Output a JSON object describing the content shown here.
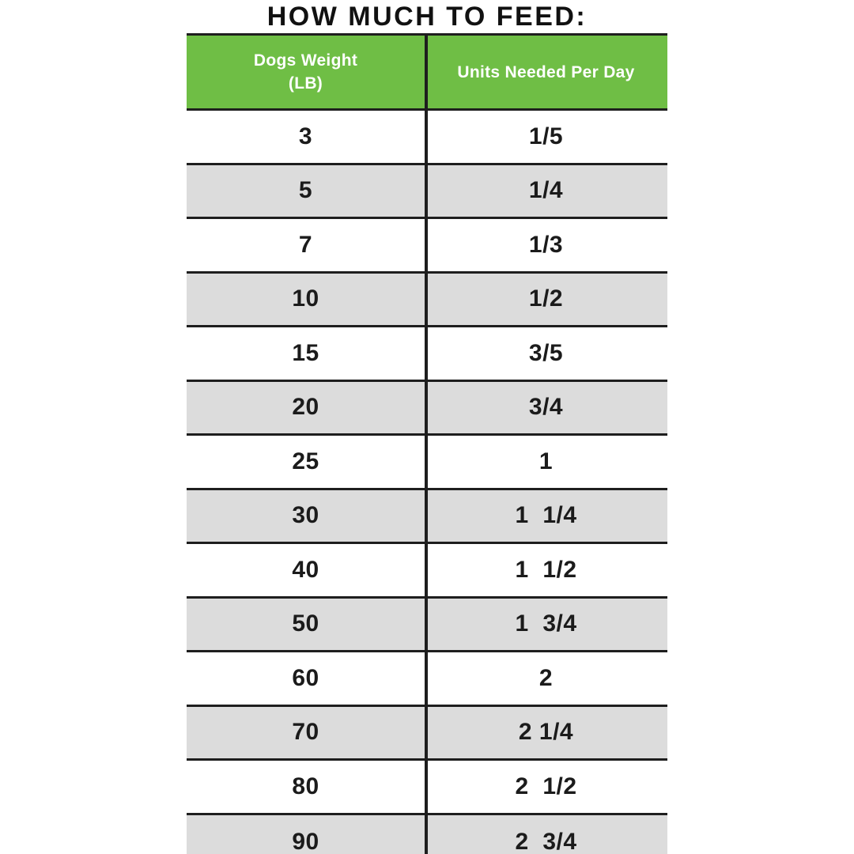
{
  "title": "HOW MUCH TO FEED:",
  "colors": {
    "header_bg": "#6FBE45",
    "header_text": "#FFFFFF",
    "alt_row_bg": "#DCDCDC",
    "grid_line": "#1E1E1E",
    "text": "#1B1B1B",
    "background": "#FFFFFF"
  },
  "table": {
    "columns": {
      "weight": {
        "header_line1": "Dogs Weight",
        "header_line2": "(LB)"
      },
      "units": {
        "header": "Units Needed Per Day"
      }
    },
    "rows": [
      {
        "weight": "3",
        "units": "1/5"
      },
      {
        "weight": "5",
        "units": "1/4"
      },
      {
        "weight": "7",
        "units": "1/3"
      },
      {
        "weight": "10",
        "units": "1/2"
      },
      {
        "weight": "15",
        "units": "3/5"
      },
      {
        "weight": "20",
        "units": "3/4"
      },
      {
        "weight": "25",
        "units": "1"
      },
      {
        "weight": "30",
        "units": "1  1/4"
      },
      {
        "weight": "40",
        "units": "1  1/2"
      },
      {
        "weight": "50",
        "units": "1  3/4"
      },
      {
        "weight": "60",
        "units": "2"
      },
      {
        "weight": "70",
        "units": "2 1/4"
      },
      {
        "weight": "80",
        "units": "2  1/2"
      },
      {
        "weight": "90",
        "units": "2  3/4"
      }
    ]
  },
  "chart_data": {
    "type": "table",
    "title": "HOW MUCH TO FEED:",
    "columns": [
      "Dogs Weight (LB)",
      "Units Needed Per Day"
    ],
    "rows": [
      [
        "3",
        "1/5"
      ],
      [
        "5",
        "1/4"
      ],
      [
        "7",
        "1/3"
      ],
      [
        "10",
        "1/2"
      ],
      [
        "15",
        "3/5"
      ],
      [
        "20",
        "3/4"
      ],
      [
        "25",
        "1"
      ],
      [
        "30",
        "1  1/4"
      ],
      [
        "40",
        "1  1/2"
      ],
      [
        "50",
        "1  3/4"
      ],
      [
        "60",
        "2"
      ],
      [
        "70",
        "2 1/4"
      ],
      [
        "80",
        "2  1/2"
      ],
      [
        "90",
        "2  3/4"
      ]
    ]
  }
}
